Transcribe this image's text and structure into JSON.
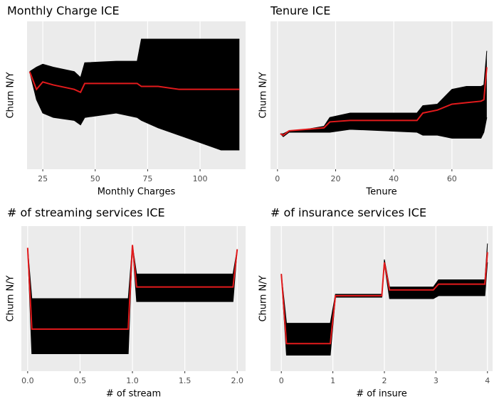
{
  "chart_data": [
    {
      "type": "ice",
      "title": "Monthly Charge ICE",
      "x_label": "Monthly Charges",
      "y_label": "Churn N/Y",
      "x": [
        18.75,
        22,
        25,
        30,
        40,
        43,
        45,
        60,
        70,
        72,
        80,
        90,
        100,
        110,
        118.75
      ],
      "xlim": [
        17.5,
        121.7
      ],
      "ylim": [
        0,
        100
      ],
      "xticks": [
        25,
        50,
        75,
        100
      ],
      "grid": true,
      "series": [
        {
          "color": "#000000",
          "values": [
            66,
            69,
            71,
            69,
            66,
            62,
            72,
            73,
            73,
            88,
            88,
            88,
            88,
            88,
            88
          ]
        },
        {
          "color": "#000000",
          "values": [
            66,
            47,
            38,
            35,
            33,
            30,
            35,
            38,
            35,
            33,
            28,
            23,
            18,
            13,
            13
          ]
        },
        {
          "color": "#e31a1c",
          "values": [
            66,
            54,
            59,
            57,
            54,
            52,
            58,
            58,
            58,
            56,
            56,
            54,
            54,
            54,
            54
          ]
        }
      ]
    },
    {
      "type": "ice",
      "title": "Tenure ICE",
      "x_label": "Tenure",
      "y_label": "Churn N/Y",
      "x": [
        1,
        2,
        4,
        10,
        16,
        18,
        25,
        48,
        50,
        55,
        60,
        65,
        70,
        71,
        72
      ],
      "xlim": [
        -2.4,
        74
      ],
      "ylim": [
        0,
        100
      ],
      "xticks": [
        0,
        20,
        40,
        60
      ],
      "grid": true,
      "series": [
        {
          "color": "#000000",
          "values": [
            24,
            24,
            26,
            27,
            29,
            35,
            38,
            38,
            43,
            44,
            54,
            56,
            56,
            57,
            80
          ]
        },
        {
          "color": "#000000",
          "values": [
            24,
            22,
            25,
            25,
            25,
            25,
            27,
            25,
            23,
            23,
            21,
            21,
            21,
            25,
            35
          ]
        },
        {
          "color": "#e31a1c",
          "values": [
            24,
            23,
            26,
            27,
            28,
            32,
            33,
            33,
            38,
            40,
            44,
            45,
            46,
            47,
            69
          ]
        }
      ]
    },
    {
      "type": "ice",
      "title": "# of streaming services ICE",
      "x_label": "# of stream",
      "y_label": "Churn N/Y",
      "x": [
        0,
        0.04,
        0.96,
        1,
        1.04,
        1.96,
        2
      ],
      "xlim": [
        -0.06,
        2.08
      ],
      "ylim": [
        0,
        100
      ],
      "xticks": [
        {
          "value": 0,
          "label": "0.0"
        },
        0.5,
        {
          "value": 1,
          "label": "1.0"
        },
        1.5,
        {
          "value": 2,
          "label": "2.0"
        }
      ],
      "grid": true,
      "series": [
        {
          "color": "#000000",
          "values": [
            85,
            50,
            50,
            87,
            67,
            67,
            84
          ]
        },
        {
          "color": "#000000",
          "values": [
            85,
            12,
            12,
            87,
            48,
            48,
            84
          ]
        },
        {
          "color": "#e31a1c",
          "values": [
            85,
            29,
            29,
            87,
            58,
            58,
            84
          ]
        }
      ]
    },
    {
      "type": "ice",
      "title": "# of insurance services ICE",
      "x_label": "# of insure",
      "y_label": "Churn N/Y",
      "x": [
        0,
        0.1,
        0.95,
        1.05,
        1.95,
        2,
        2.1,
        2.95,
        3.05,
        3.95,
        4
      ],
      "xlim": [
        -0.21,
        4.1
      ],
      "ylim": [
        0,
        100
      ],
      "xticks": [
        0,
        1,
        2,
        3,
        4
      ],
      "grid": true,
      "series": [
        {
          "color": "#000000",
          "values": [
            67,
            33,
            33,
            53,
            53,
            77,
            58,
            58,
            63,
            63,
            88
          ]
        },
        {
          "color": "#000000",
          "values": [
            67,
            11,
            11,
            51,
            51,
            74,
            50,
            50,
            52,
            52,
            75
          ]
        },
        {
          "color": "#e31a1c",
          "values": [
            67,
            19,
            19,
            52,
            52,
            75,
            56,
            56,
            60,
            60,
            82
          ]
        }
      ]
    }
  ]
}
